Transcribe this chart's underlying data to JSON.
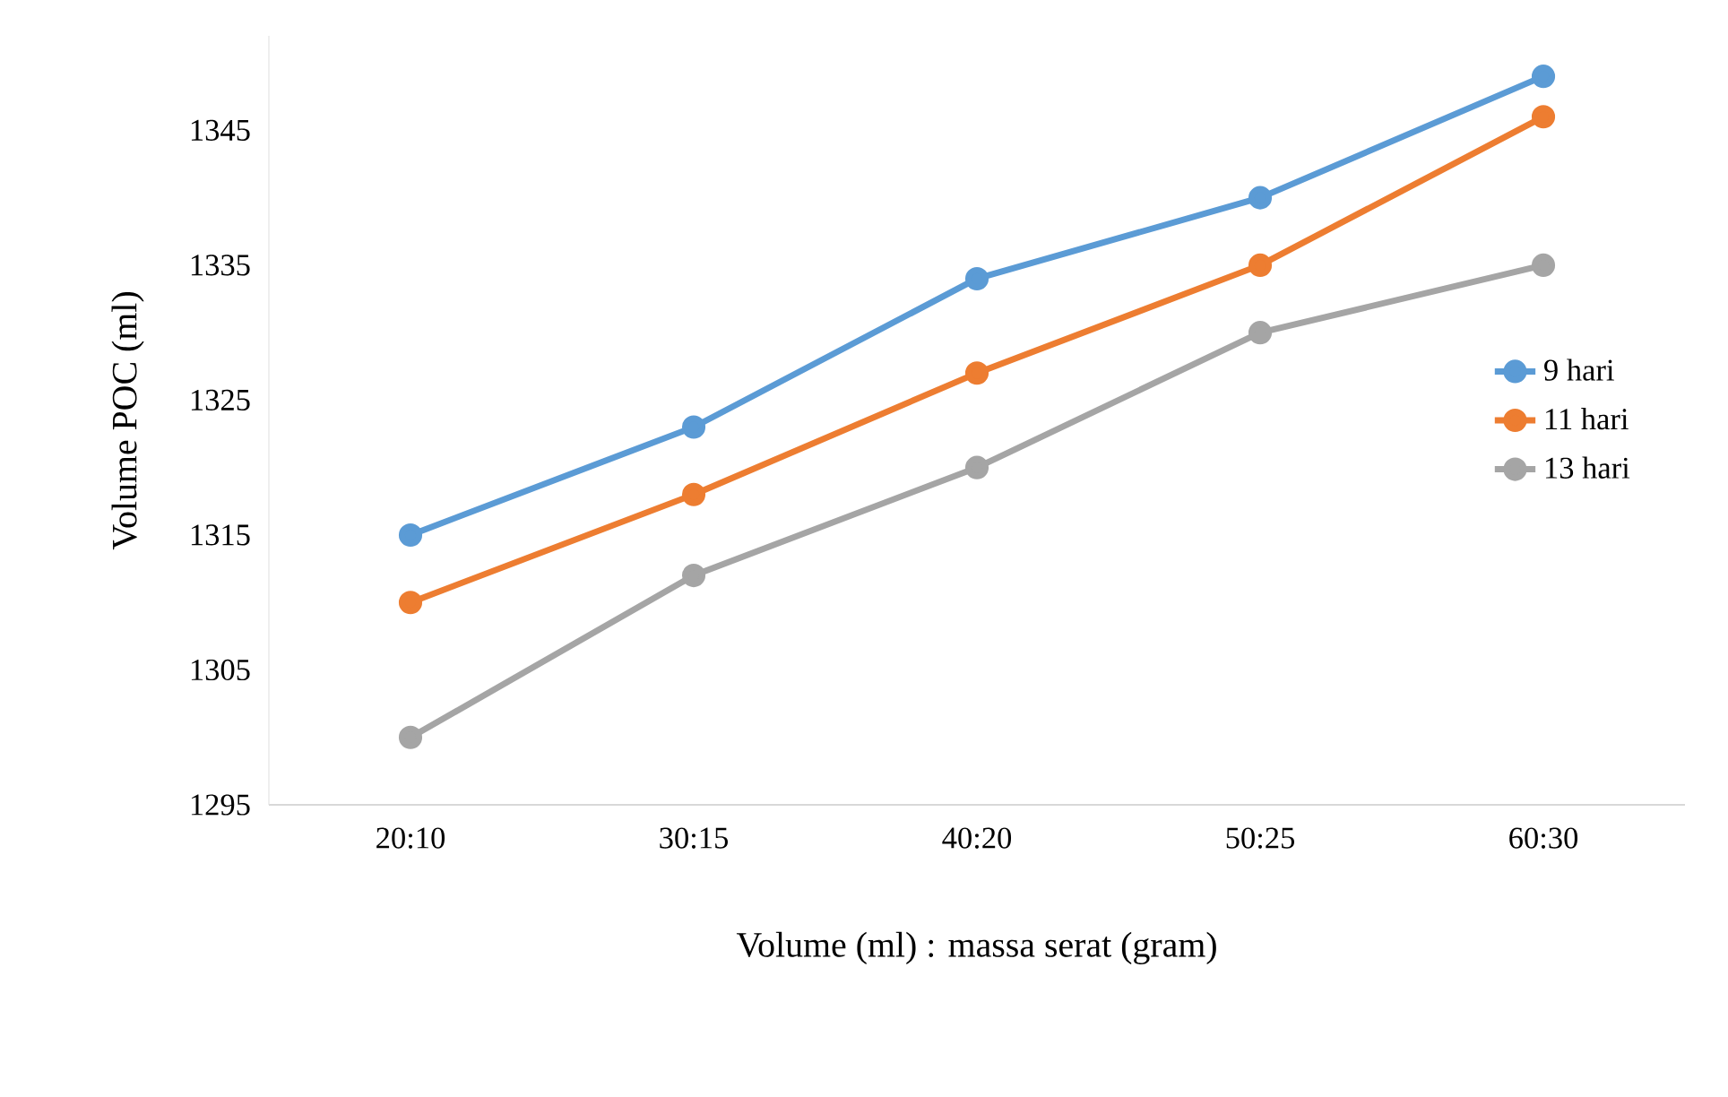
{
  "chart_data": {
    "type": "line",
    "xlabel": "Volume (ml) : massa serat (gram)",
    "ylabel": "Volume POC (ml)",
    "categories": [
      "20:10",
      "30:15",
      "40:20",
      "50:25",
      "60:30"
    ],
    "series": [
      {
        "name": "9 hari",
        "color": "#5b9bd5",
        "values": [
          1315,
          1323,
          1334,
          1340,
          1349
        ]
      },
      {
        "name": "11 hari",
        "color": "#ed7d31",
        "values": [
          1310,
          1318,
          1327,
          1335,
          1346
        ]
      },
      {
        "name": "13 hari",
        "color": "#a5a5a5",
        "values": [
          1300,
          1312,
          1320,
          1330,
          1335
        ]
      }
    ],
    "ylim": [
      1295,
      1352
    ],
    "yticks": [
      1295,
      1305,
      1315,
      1325,
      1335,
      1345
    ],
    "grid": false,
    "legend": "right",
    "marker": "circle",
    "line_style": "solid"
  }
}
